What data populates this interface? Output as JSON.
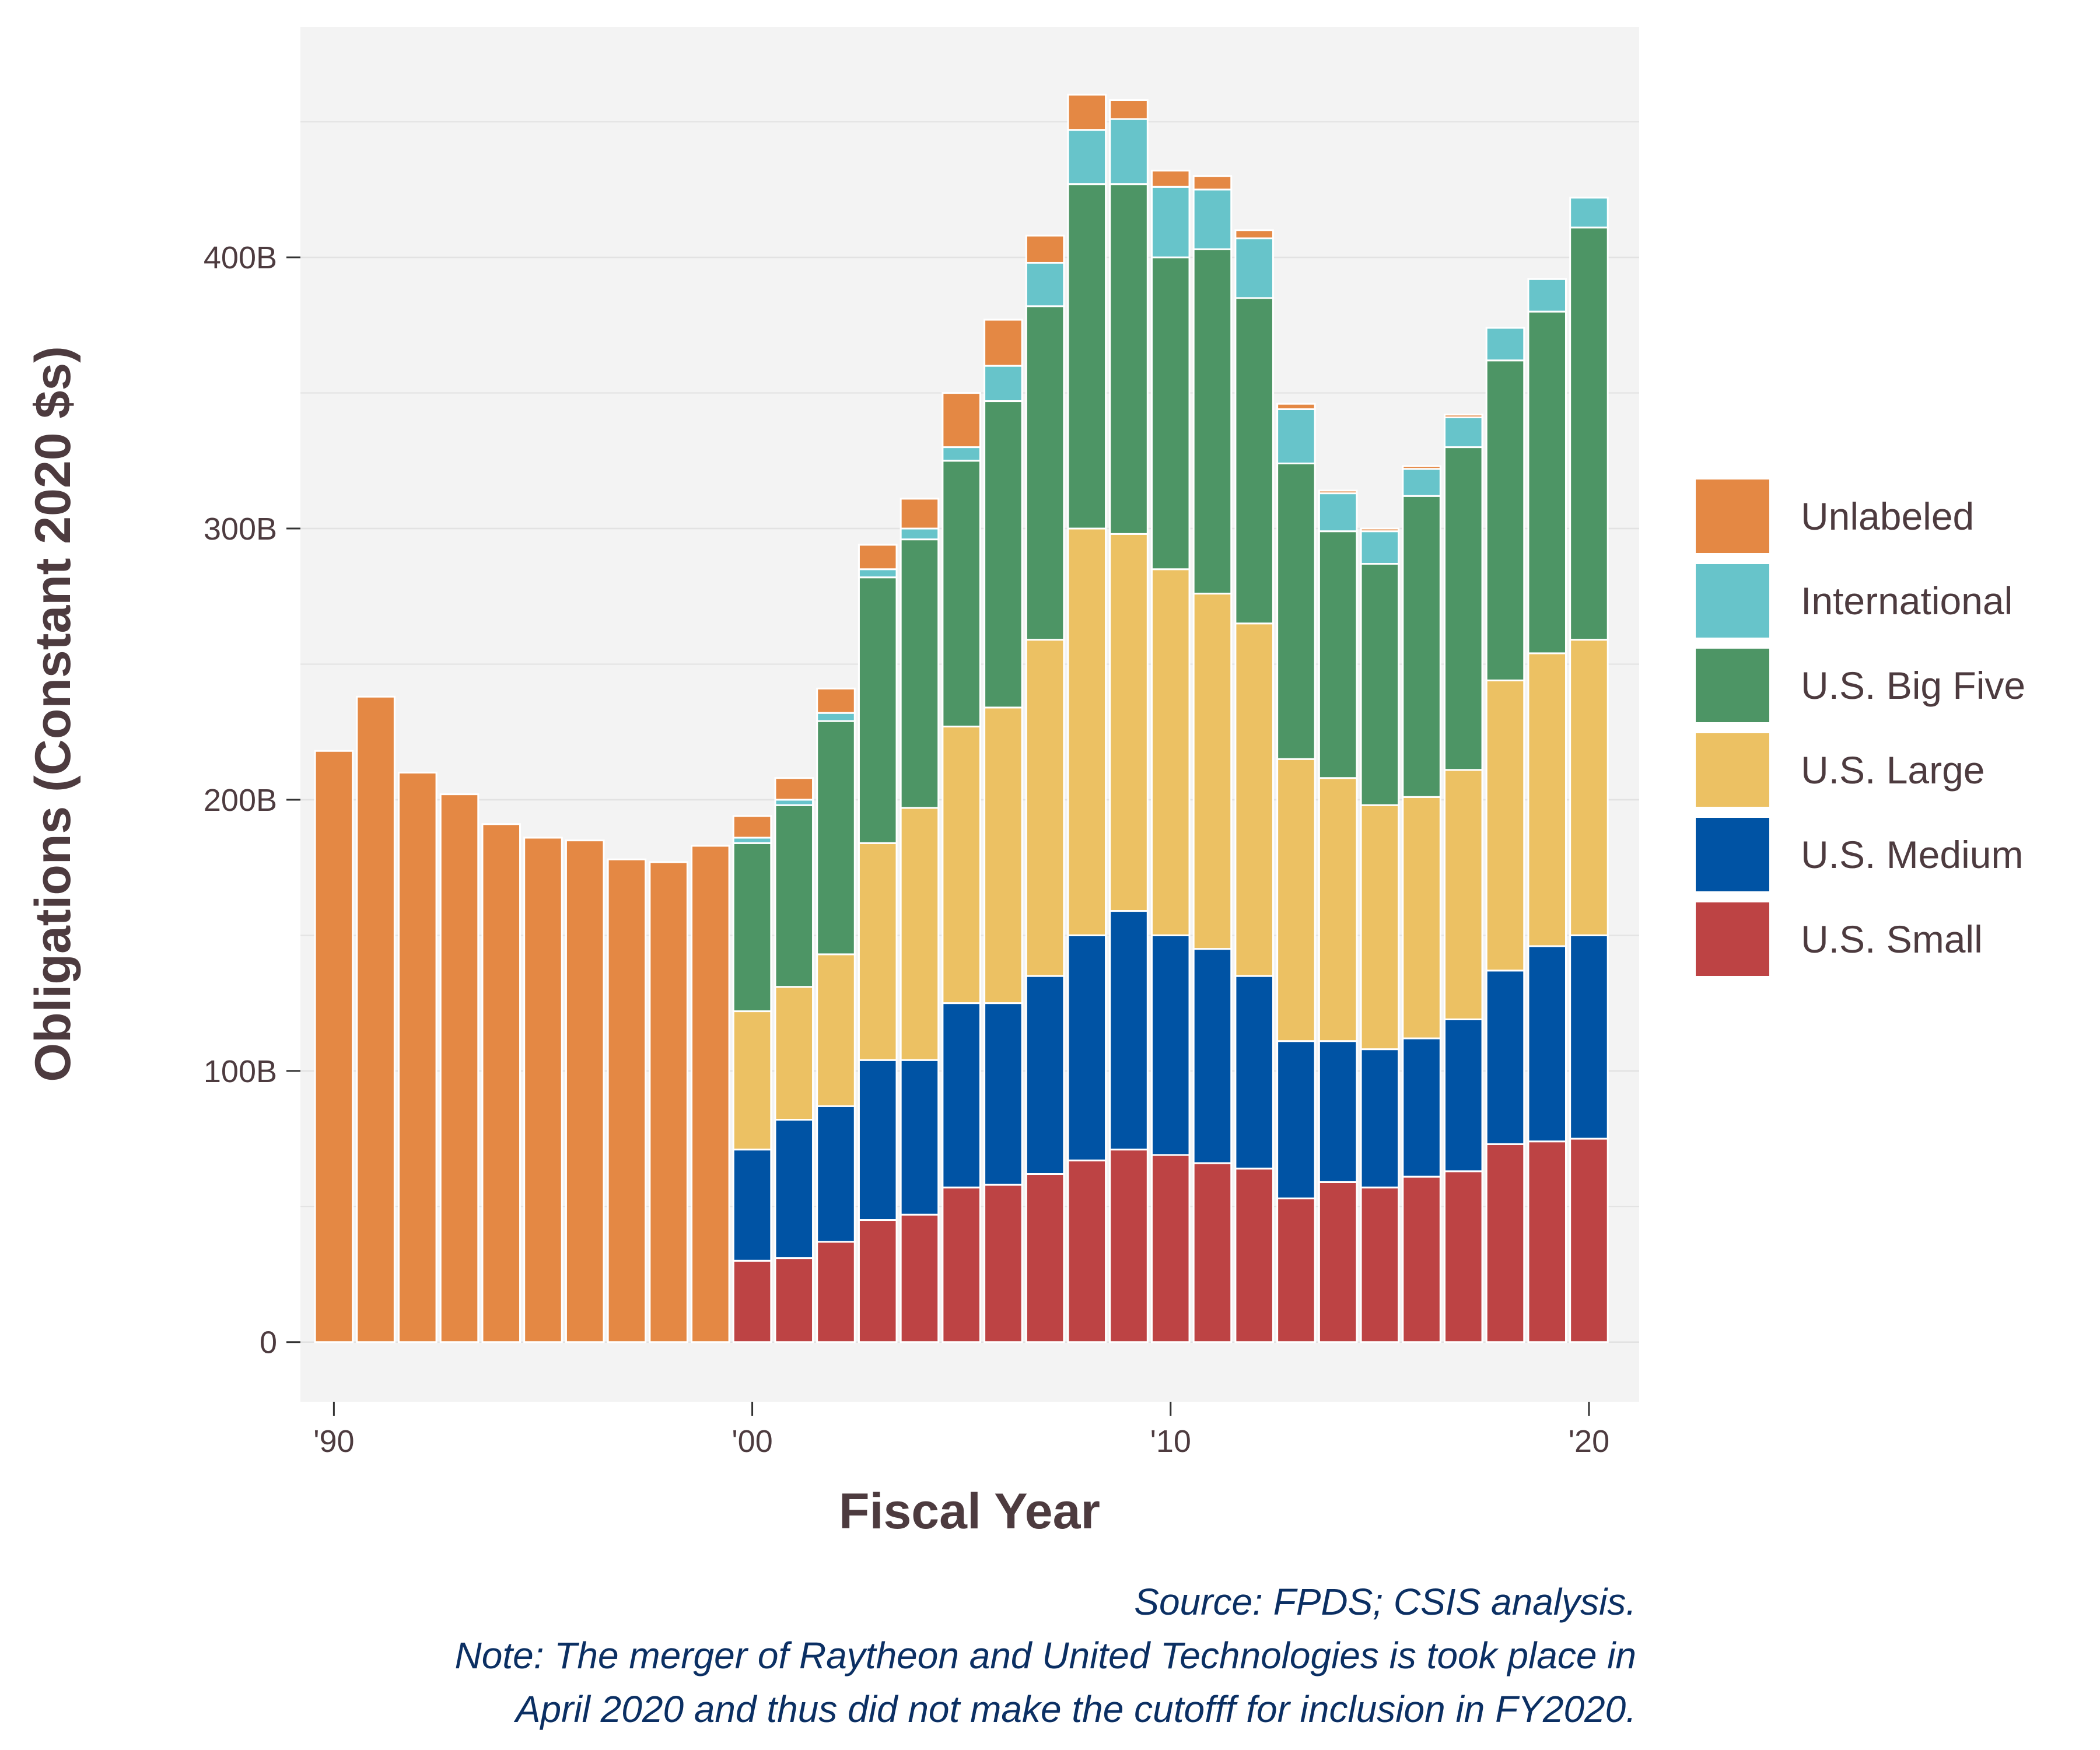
{
  "chart_data": {
    "type": "bar",
    "stacked": true,
    "xlabel": "Fiscal Year",
    "ylabel": "Obligations (Constant 2020 $s)",
    "ylim": [
      -22,
      485
    ],
    "xlim": [
      1989.2,
      2021.2
    ],
    "x_tick_values": [
      1990,
      2000,
      2010,
      2020
    ],
    "x_tick_labels": [
      "'90",
      "'00",
      "'10",
      "'20"
    ],
    "y_tick_values": [
      0,
      100,
      200,
      300,
      400
    ],
    "y_tick_labels": [
      "0",
      "100B",
      "200B",
      "300B",
      "400B"
    ],
    "grid": true,
    "legend_position": "right",
    "years": [
      1990,
      1991,
      1992,
      1993,
      1994,
      1995,
      1996,
      1997,
      1998,
      1999,
      2000,
      2001,
      2002,
      2003,
      2004,
      2005,
      2006,
      2007,
      2008,
      2009,
      2010,
      2011,
      2012,
      2013,
      2014,
      2015,
      2016,
      2017,
      2018,
      2019,
      2020
    ],
    "series": [
      {
        "name": "U.S. Small",
        "color": "#bd4344",
        "values": [
          0,
          0,
          0,
          0,
          0,
          0,
          0,
          0,
          0,
          0,
          30,
          31,
          37,
          45,
          47,
          57,
          58,
          62,
          67,
          71,
          69,
          66,
          64,
          53,
          59,
          57,
          61,
          63,
          73,
          74,
          75
        ]
      },
      {
        "name": "U.S. Medium",
        "color": "#0053a4",
        "values": [
          0,
          0,
          0,
          0,
          0,
          0,
          0,
          0,
          0,
          0,
          41,
          51,
          50,
          59,
          57,
          68,
          67,
          73,
          83,
          88,
          81,
          79,
          71,
          58,
          52,
          51,
          51,
          56,
          64,
          72,
          75
        ]
      },
      {
        "name": "U.S. Large",
        "color": "#ecc163",
        "values": [
          0,
          0,
          0,
          0,
          0,
          0,
          0,
          0,
          0,
          0,
          51,
          49,
          56,
          80,
          93,
          102,
          109,
          124,
          150,
          139,
          135,
          131,
          130,
          104,
          97,
          90,
          89,
          92,
          107,
          108,
          109
        ]
      },
      {
        "name": "U.S. Big Five",
        "color": "#4d9565",
        "values": [
          0,
          0,
          0,
          0,
          0,
          0,
          0,
          0,
          0,
          0,
          62,
          67,
          86,
          98,
          99,
          98,
          113,
          123,
          127,
          129,
          115,
          127,
          120,
          109,
          91,
          89,
          111,
          119,
          118,
          126,
          152
        ]
      },
      {
        "name": "International",
        "color": "#67c4ca",
        "values": [
          0,
          0,
          0,
          0,
          0,
          0,
          0,
          0,
          0,
          0,
          2,
          2,
          3,
          3,
          4,
          5,
          13,
          16,
          20,
          24,
          26,
          22,
          22,
          20,
          14,
          12,
          10,
          11,
          12,
          12,
          11
        ]
      },
      {
        "name": "Unlabeled",
        "color": "#e48844",
        "values": [
          218,
          238,
          210,
          202,
          191,
          186,
          185,
          178,
          177,
          183,
          8,
          8,
          9,
          9,
          11,
          20,
          17,
          10,
          13,
          7,
          6,
          5,
          3,
          2,
          1,
          1,
          1,
          1,
          0,
          0,
          0
        ]
      }
    ]
  },
  "legend": [
    {
      "label": "Unlabeled",
      "color": "#e48844"
    },
    {
      "label": "International",
      "color": "#67c4ca"
    },
    {
      "label": "U.S. Big Five",
      "color": "#4d9565"
    },
    {
      "label": "U.S. Large",
      "color": "#ecc163"
    },
    {
      "label": "U.S. Medium",
      "color": "#0053a4"
    },
    {
      "label": "U.S. Small",
      "color": "#bd4344"
    }
  ],
  "caption": {
    "source": "Source: FPDS; CSIS analysis.",
    "note_line1": "Note: The merger of Raytheon and United Technologies is took place in",
    "note_line2": "April 2020 and thus did not make the cutofff for inclusion in FY2020."
  },
  "colors": {
    "panel_background": "#f3f3f3",
    "grid": "#e2e2e2",
    "text": "#4d3b3f",
    "caption": "#0b2f63"
  }
}
